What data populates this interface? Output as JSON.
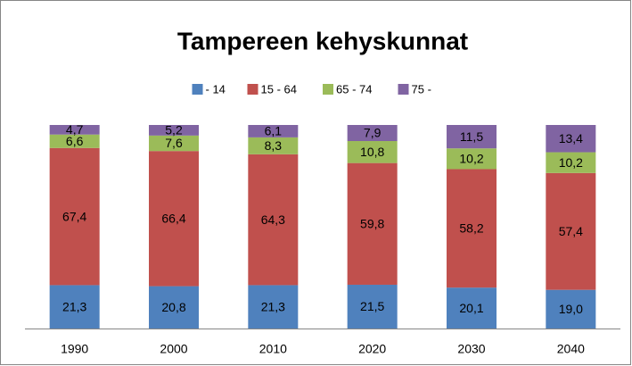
{
  "chart_data": {
    "type": "stacked_bar",
    "title": "Tampereen kehyskunnat",
    "categories": [
      "1990",
      "2000",
      "2010",
      "2020",
      "2030",
      "2040"
    ],
    "ylim": [
      0,
      100
    ],
    "legend": "top",
    "series": [
      {
        "name": "- 14",
        "color": "#4f81bd",
        "values": [
          21.3,
          20.8,
          21.3,
          21.5,
          20.1,
          19.0
        ],
        "value_labels": [
          "21,3",
          "20,8",
          "21,3",
          "21,5",
          "20,1",
          "19,0"
        ]
      },
      {
        "name": "15 - 64",
        "color": "#c0504d",
        "values": [
          67.4,
          66.4,
          64.3,
          59.8,
          58.2,
          57.4
        ],
        "value_labels": [
          "67,4",
          "66,4",
          "64,3",
          "59,8",
          "58,2",
          "57,4"
        ]
      },
      {
        "name": "65 - 74",
        "color": "#9bbb59",
        "values": [
          6.6,
          7.6,
          8.3,
          10.8,
          10.2,
          10.2
        ],
        "value_labels": [
          "6,6",
          "7,6",
          "8,3",
          "10,8",
          "10,2",
          "10,2"
        ]
      },
      {
        "name": "75 -",
        "color": "#8064a2",
        "values": [
          4.7,
          5.2,
          6.1,
          7.9,
          11.5,
          13.4
        ],
        "value_labels": [
          "4,7",
          "5,2",
          "6,1",
          "7,9",
          "11,5",
          "13,4"
        ]
      }
    ]
  }
}
